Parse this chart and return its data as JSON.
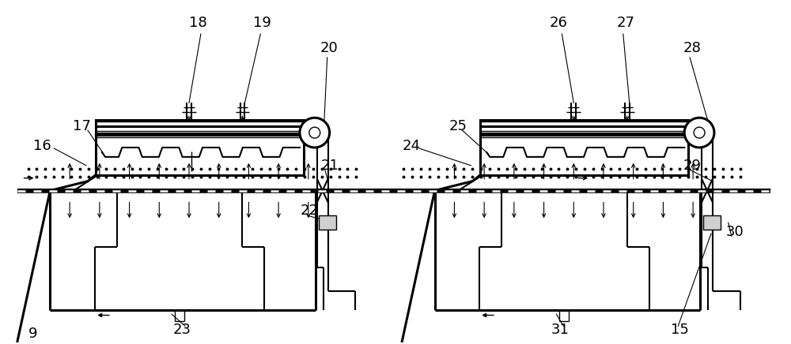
{
  "bg_color": "#ffffff",
  "lc": "#000000",
  "fig_width": 10.0,
  "fig_height": 4.36,
  "dpi": 100
}
